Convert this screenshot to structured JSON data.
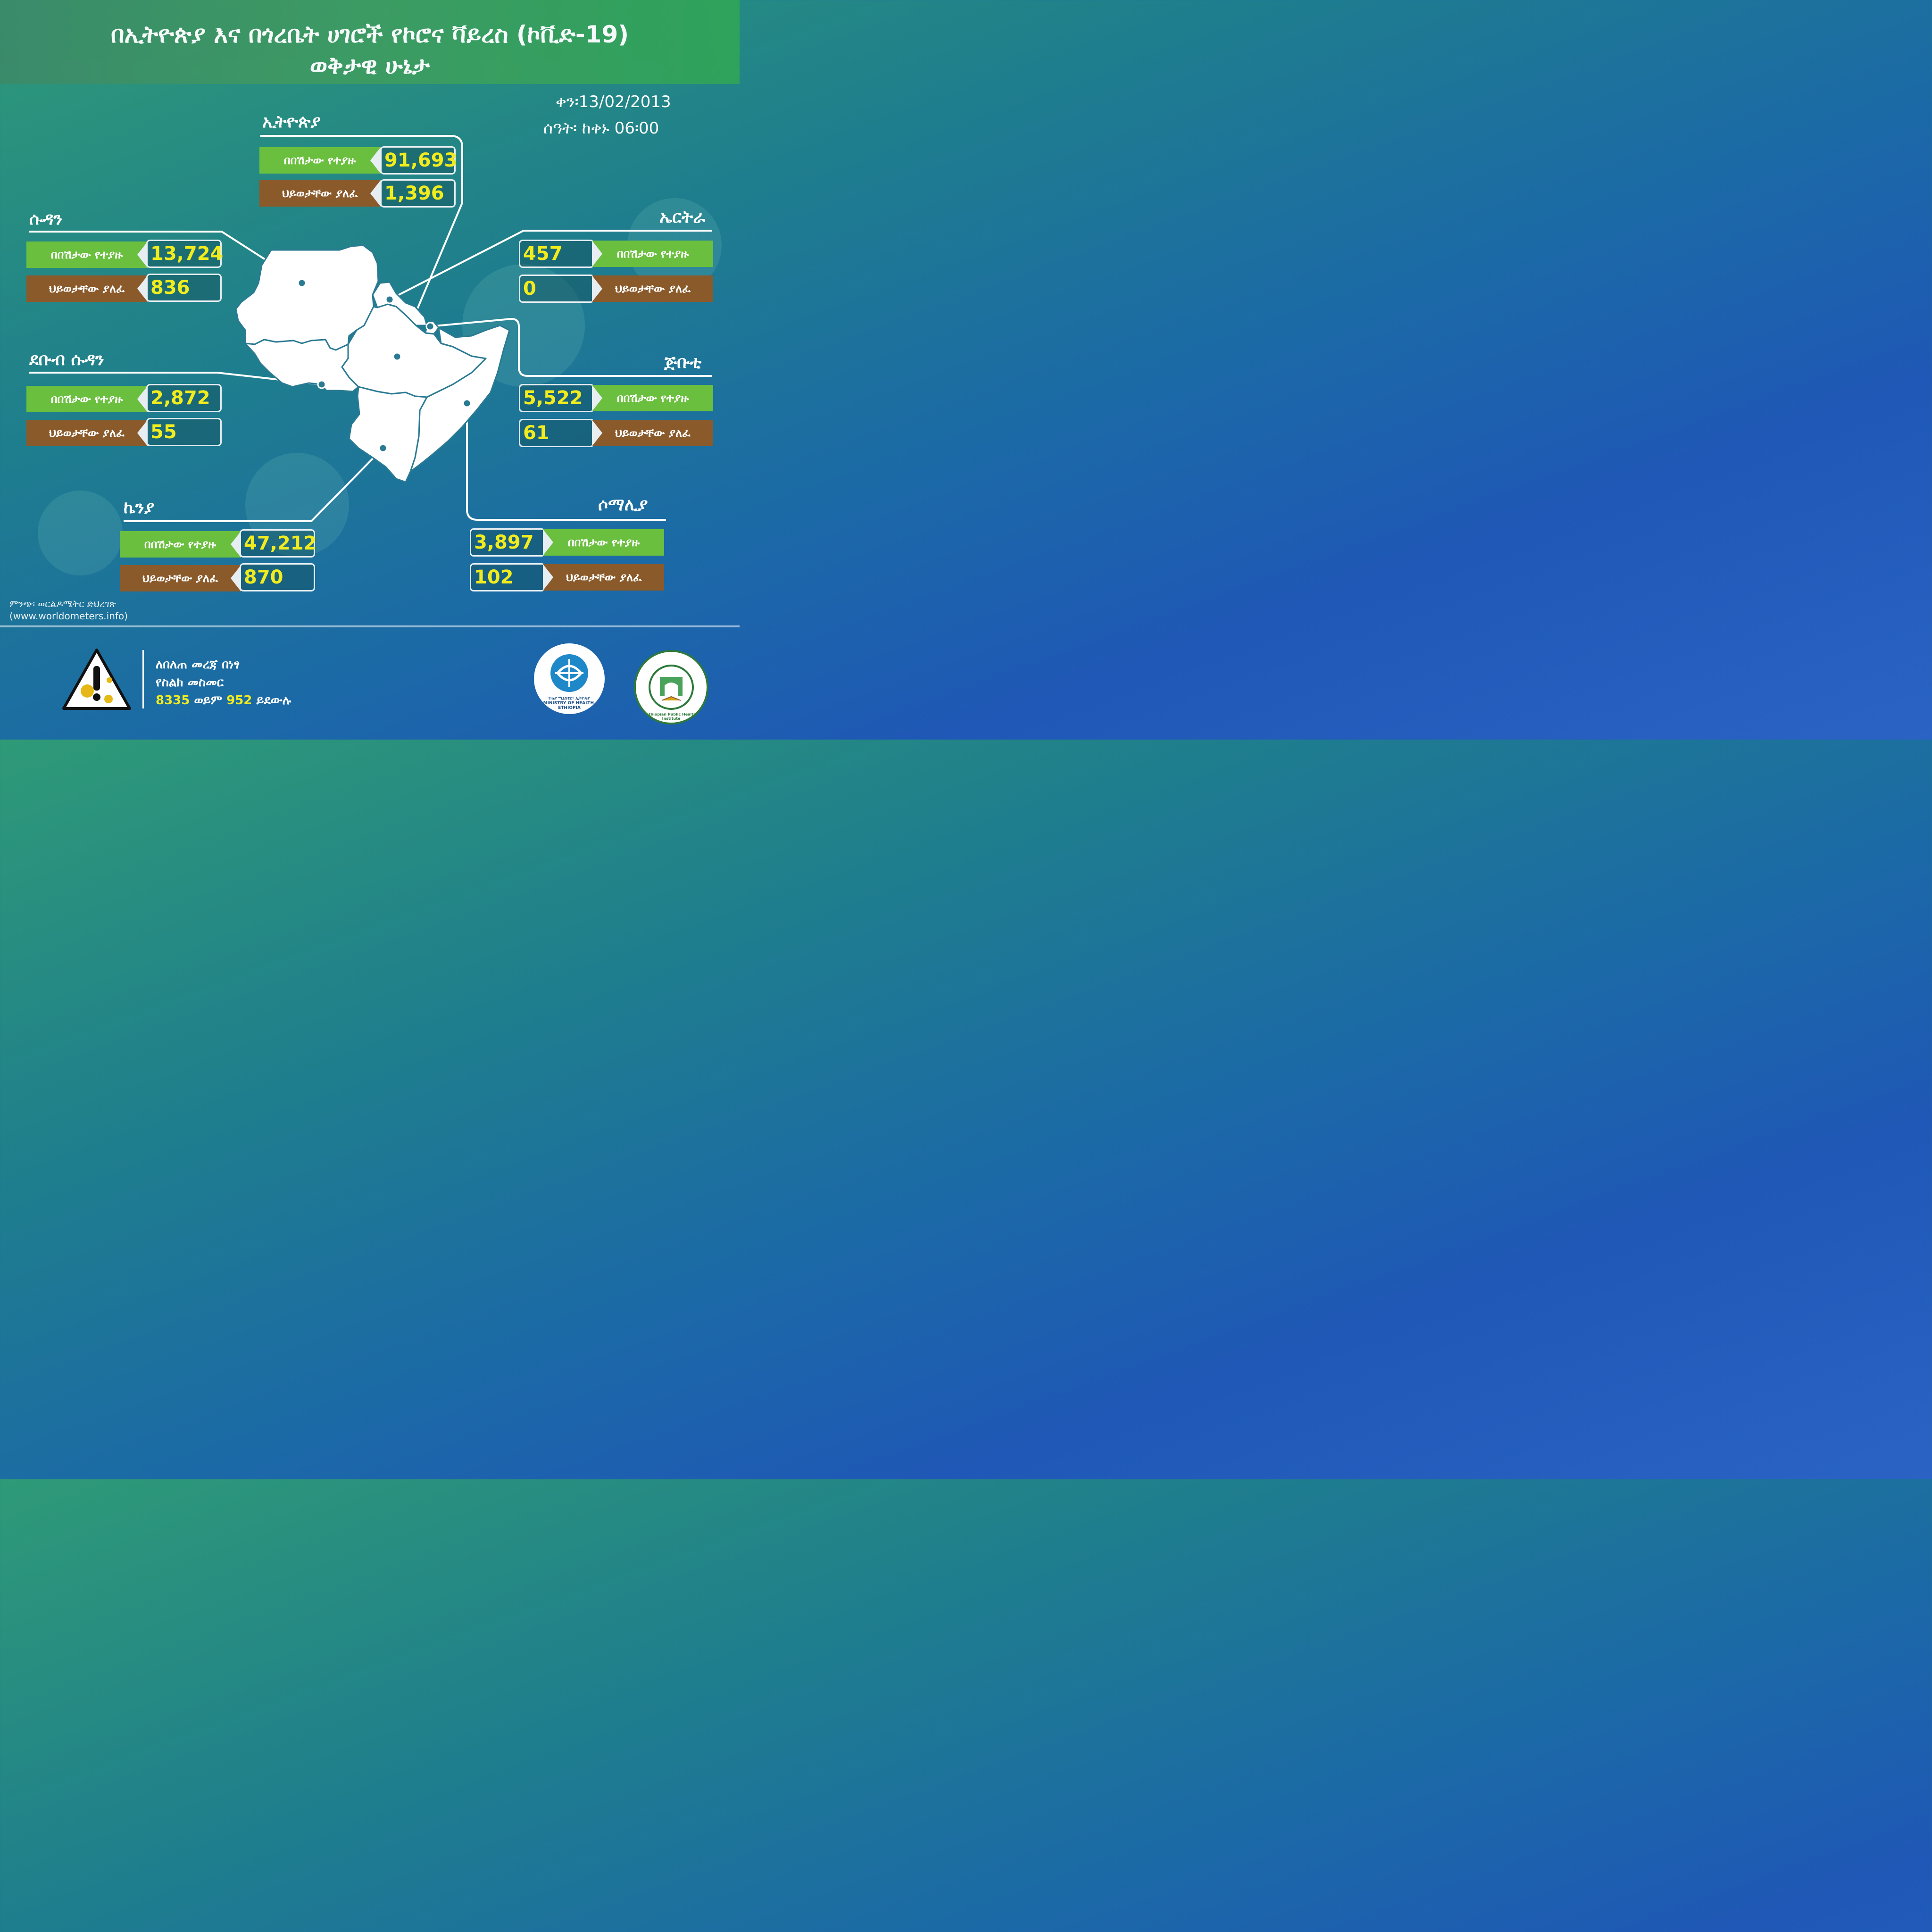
{
  "header": {
    "title_line1": "በኢትዮጵያ እና በጎረቤት ሀገሮች የኮሮና ቫይረስ (ኮቪድ-19)",
    "title_line2": "ወቅታዊ ሁኔታ"
  },
  "date": {
    "date_text": "ቀን፡13/02/2013",
    "time_text": "ሰዓት፡ ከቀኑ 06፡00"
  },
  "labels": {
    "cases": "በበሽታው የተያዙ",
    "deaths": "ህይወታቸው ያለፈ"
  },
  "countries": {
    "ethiopia": {
      "name": "ኢትዮጵያ",
      "cases": "91,693",
      "deaths": "1,396"
    },
    "sudan": {
      "name": "ሱዳን",
      "cases": "13,724",
      "deaths": "836"
    },
    "south_sudan": {
      "name": "ደቡብ ሱዳን",
      "cases": "2,872",
      "deaths": "55"
    },
    "kenya": {
      "name": "ኬንያ",
      "cases": "47,212",
      "deaths": "870"
    },
    "eritrea": {
      "name": "ኤርትራ",
      "cases": "457",
      "deaths": "0"
    },
    "djibouti": {
      "name": "ጅቡቲ",
      "cases": "5,522",
      "deaths": "61"
    },
    "somalia": {
      "name": "ሶማሊያ",
      "cases": "3,897",
      "deaths": "102"
    }
  },
  "source": {
    "line1": "ምንጭ፡ ወርልዶሜትር ድህረገጽ",
    "line2": "(www.worldometers.info)"
  },
  "hotline": {
    "line1": "ለበለጠ መረጃ በነፃ",
    "line2": "የስልክ መስመር",
    "num1": "8335",
    "or": "ወይም",
    "num2": "952",
    "call": "ይደውሉ"
  },
  "logos": {
    "moh_text": "የጤና ሚኒስቴር፣ ኢትዮጵያ MINISTRY OF HEALTH, ETHIOPIA",
    "ephi_text": "Ethiopian Public Health Institute"
  },
  "colors": {
    "value_yellow": "#f2ec1e",
    "cases_green": "#6abf3e",
    "deaths_brown": "#8b5a2b"
  }
}
